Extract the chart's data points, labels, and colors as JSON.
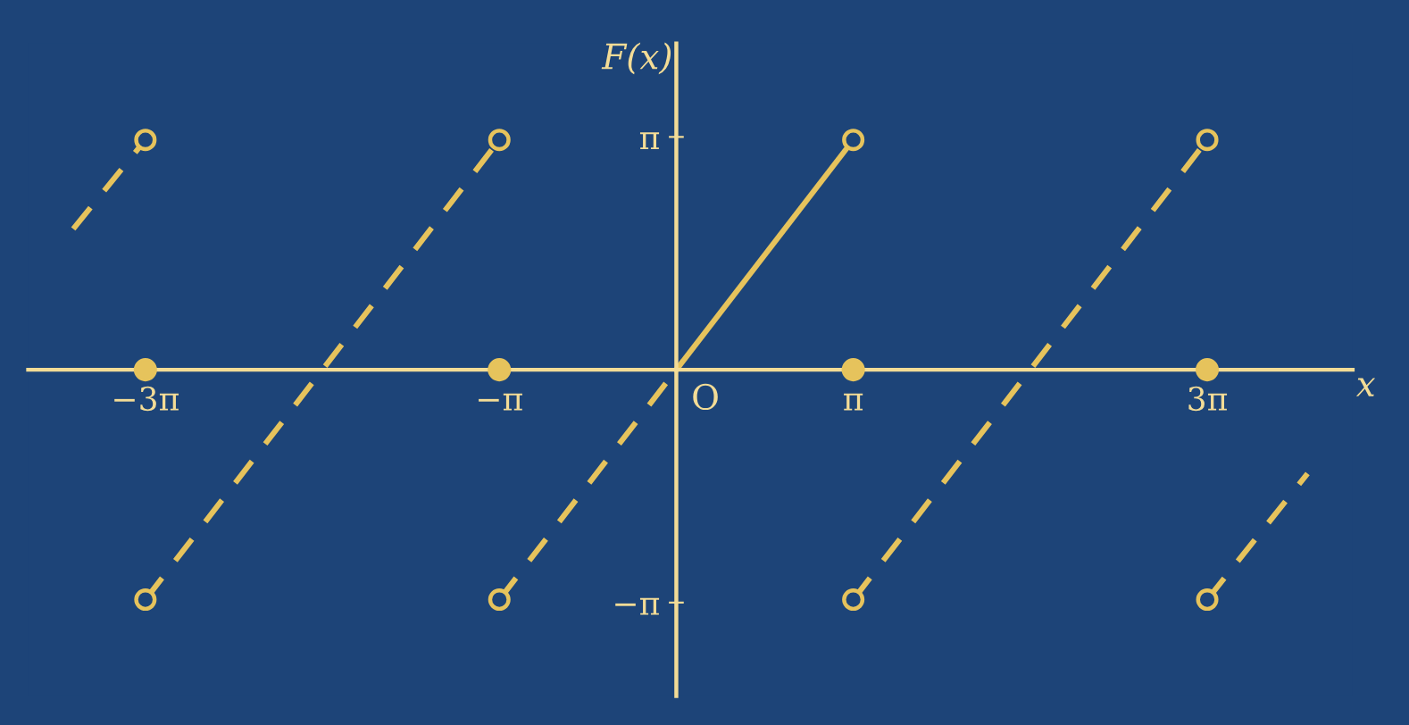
{
  "chart_data": {
    "type": "line",
    "xlabel": "x",
    "ylabel": "F(x)",
    "annotations": [
      {
        "text": "O",
        "x": 0,
        "y": 0
      }
    ],
    "xlim": [
      -11.5,
      12.0
    ],
    "ylim": [
      -4.4,
      4.4
    ],
    "xticks": [
      {
        "value": -9.42,
        "label": "−3π"
      },
      {
        "value": -3.14,
        "label": "−π"
      },
      {
        "value": 3.14,
        "label": "π"
      },
      {
        "value": 9.42,
        "label": "3π"
      }
    ],
    "yticks": [
      {
        "value": -3.14,
        "label": "−π"
      },
      {
        "value": 3.14,
        "label": "π"
      }
    ],
    "grid": false,
    "series": [
      {
        "line_style": "dashed",
        "color": "#e6c35c",
        "x": [
          -10.7,
          -9.42
        ],
        "values": [
          1.9,
          3.1
        ]
      },
      {
        "line_style": "dashed",
        "color": "#e6c35c",
        "x": [
          -9.42,
          -3.14
        ],
        "values": [
          -3.1,
          3.1
        ]
      },
      {
        "line_style": "dashed",
        "color": "#e6c35c",
        "x": [
          -3.14,
          0
        ],
        "values": [
          -3.1,
          0
        ]
      },
      {
        "line_style": "solid",
        "color": "#e6c35c",
        "x": [
          0,
          3.14
        ],
        "values": [
          0,
          3.1
        ]
      },
      {
        "line_style": "dashed",
        "color": "#e6c35c",
        "x": [
          3.14,
          9.42
        ],
        "values": [
          -3.1,
          3.1
        ]
      },
      {
        "line_style": "dashed",
        "color": "#e6c35c",
        "x": [
          9.42,
          11.2
        ],
        "values": [
          -3.1,
          -1.4
        ]
      },
      {
        "type": "scatter",
        "marker": "circle",
        "color": "#e6c35c",
        "x": [
          -9.42,
          -9.42,
          -3.14,
          -3.14,
          3.14,
          3.14,
          9.42,
          9.42
        ],
        "values": [
          3.1,
          -3.1,
          3.1,
          -3.1,
          3.1,
          -3.1,
          3.1,
          -3.1
        ]
      },
      {
        "type": "bubble",
        "marker": "circle",
        "color": "#e6c35c",
        "x": [
          -9.42,
          -3.14,
          3.14,
          9.42
        ],
        "values": [
          0,
          0,
          0,
          0
        ],
        "sizes": [
          1,
          1,
          1,
          1
        ]
      }
    ]
  }
}
